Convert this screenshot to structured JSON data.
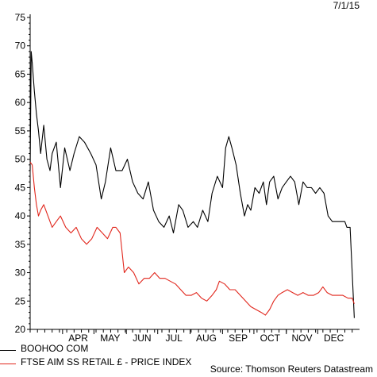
{
  "header": {
    "date": "7/1/15"
  },
  "footer": {
    "source": "Source: Thomson Reuters Datastream"
  },
  "chart_data": {
    "type": "line",
    "title": "",
    "xlabel": "",
    "ylabel": "",
    "ylim": [
      20,
      75
    ],
    "yticks": [
      20,
      25,
      30,
      35,
      40,
      45,
      50,
      55,
      60,
      65,
      70,
      75
    ],
    "xlim": [
      "2014-03-01",
      "2015-01-07"
    ],
    "month_labels": [
      "APR",
      "MAY",
      "JUN",
      "JUL",
      "AUG",
      "SEP",
      "OCT",
      "NOV",
      "DEC"
    ],
    "grid": false,
    "legend_position": "bottom-left",
    "series": [
      {
        "name": "BOOHOO COM",
        "color": "#000000",
        "points": [
          [
            "2014-03-01",
            48
          ],
          [
            "2014-03-02",
            69
          ],
          [
            "2014-03-03",
            67
          ],
          [
            "2014-03-05",
            62
          ],
          [
            "2014-03-07",
            58
          ],
          [
            "2014-03-09",
            55
          ],
          [
            "2014-03-11",
            51
          ],
          [
            "2014-03-14",
            56
          ],
          [
            "2014-03-17",
            50
          ],
          [
            "2014-03-20",
            48
          ],
          [
            "2014-03-22",
            51
          ],
          [
            "2014-03-26",
            53
          ],
          [
            "2014-03-30",
            45
          ],
          [
            "2014-04-03",
            52
          ],
          [
            "2014-04-08",
            48
          ],
          [
            "2014-04-12",
            51
          ],
          [
            "2014-04-17",
            54
          ],
          [
            "2014-04-22",
            53
          ],
          [
            "2014-04-28",
            51
          ],
          [
            "2014-05-03",
            49
          ],
          [
            "2014-05-08",
            43
          ],
          [
            "2014-05-12",
            46
          ],
          [
            "2014-05-17",
            52
          ],
          [
            "2014-05-22",
            48
          ],
          [
            "2014-05-28",
            48
          ],
          [
            "2014-06-02",
            50
          ],
          [
            "2014-06-07",
            46
          ],
          [
            "2014-06-12",
            44
          ],
          [
            "2014-06-17",
            43
          ],
          [
            "2014-06-22",
            46
          ],
          [
            "2014-06-27",
            41
          ],
          [
            "2014-07-02",
            39
          ],
          [
            "2014-07-07",
            38
          ],
          [
            "2014-07-12",
            40
          ],
          [
            "2014-07-16",
            37
          ],
          [
            "2014-07-21",
            42
          ],
          [
            "2014-07-25",
            41
          ],
          [
            "2014-07-30",
            38
          ],
          [
            "2014-08-04",
            39
          ],
          [
            "2014-08-08",
            38
          ],
          [
            "2014-08-13",
            41
          ],
          [
            "2014-08-18",
            39
          ],
          [
            "2014-08-22",
            44
          ],
          [
            "2014-08-27",
            47
          ],
          [
            "2014-09-01",
            45
          ],
          [
            "2014-09-04",
            52
          ],
          [
            "2014-09-07",
            54
          ],
          [
            "2014-09-10",
            52
          ],
          [
            "2014-09-14",
            49
          ],
          [
            "2014-09-18",
            44
          ],
          [
            "2014-09-22",
            40
          ],
          [
            "2014-09-25",
            42
          ],
          [
            "2014-09-28",
            41
          ],
          [
            "2014-10-02",
            45
          ],
          [
            "2014-10-06",
            44
          ],
          [
            "2014-10-10",
            46
          ],
          [
            "2014-10-13",
            42
          ],
          [
            "2014-10-16",
            46
          ],
          [
            "2014-10-20",
            47
          ],
          [
            "2014-10-24",
            43
          ],
          [
            "2014-10-28",
            45
          ],
          [
            "2014-11-01",
            46
          ],
          [
            "2014-11-05",
            47
          ],
          [
            "2014-11-09",
            46
          ],
          [
            "2014-11-13",
            42
          ],
          [
            "2014-11-17",
            46
          ],
          [
            "2014-11-21",
            45
          ],
          [
            "2014-11-25",
            45
          ],
          [
            "2014-11-29",
            44
          ],
          [
            "2014-12-03",
            45
          ],
          [
            "2014-12-07",
            44
          ],
          [
            "2014-12-11",
            40
          ],
          [
            "2014-12-15",
            39
          ],
          [
            "2014-12-19",
            39
          ],
          [
            "2014-12-23",
            39
          ],
          [
            "2014-12-27",
            39
          ],
          [
            "2014-12-29",
            38
          ],
          [
            "2015-01-01",
            38
          ],
          [
            "2015-01-05",
            22
          ]
        ]
      },
      {
        "name": "FTSE AIM SS RETAIL £ - PRICE INDEX",
        "color": "#e1261c",
        "points": [
          [
            "2014-03-01",
            49.5
          ],
          [
            "2014-03-03",
            49
          ],
          [
            "2014-03-05",
            45
          ],
          [
            "2014-03-07",
            42
          ],
          [
            "2014-03-09",
            40
          ],
          [
            "2014-03-11",
            41
          ],
          [
            "2014-03-14",
            42
          ],
          [
            "2014-03-18",
            40
          ],
          [
            "2014-03-22",
            38
          ],
          [
            "2014-03-26",
            39
          ],
          [
            "2014-03-30",
            40
          ],
          [
            "2014-04-04",
            38
          ],
          [
            "2014-04-09",
            37
          ],
          [
            "2014-04-14",
            38
          ],
          [
            "2014-04-19",
            36
          ],
          [
            "2014-04-24",
            35
          ],
          [
            "2014-04-29",
            36
          ],
          [
            "2014-05-04",
            38
          ],
          [
            "2014-05-09",
            37
          ],
          [
            "2014-05-14",
            36
          ],
          [
            "2014-05-19",
            38
          ],
          [
            "2014-05-22",
            38
          ],
          [
            "2014-05-26",
            37
          ],
          [
            "2014-05-30",
            30
          ],
          [
            "2014-06-03",
            31
          ],
          [
            "2014-06-08",
            30
          ],
          [
            "2014-06-13",
            28
          ],
          [
            "2014-06-18",
            29
          ],
          [
            "2014-06-23",
            29
          ],
          [
            "2014-06-28",
            30
          ],
          [
            "2014-07-03",
            29
          ],
          [
            "2014-07-08",
            29
          ],
          [
            "2014-07-13",
            28.5
          ],
          [
            "2014-07-18",
            28
          ],
          [
            "2014-07-23",
            27
          ],
          [
            "2014-07-28",
            26
          ],
          [
            "2014-08-02",
            26
          ],
          [
            "2014-08-07",
            26.5
          ],
          [
            "2014-08-12",
            25.5
          ],
          [
            "2014-08-17",
            25
          ],
          [
            "2014-08-22",
            26
          ],
          [
            "2014-08-26",
            27
          ],
          [
            "2014-08-29",
            28.5
          ],
          [
            "2014-09-03",
            28
          ],
          [
            "2014-09-08",
            27
          ],
          [
            "2014-09-13",
            27
          ],
          [
            "2014-09-18",
            26
          ],
          [
            "2014-09-23",
            25
          ],
          [
            "2014-09-28",
            24
          ],
          [
            "2014-10-03",
            23.5
          ],
          [
            "2014-10-08",
            23
          ],
          [
            "2014-10-12",
            22.5
          ],
          [
            "2014-10-16",
            23.5
          ],
          [
            "2014-10-20",
            25
          ],
          [
            "2014-10-24",
            26
          ],
          [
            "2014-10-28",
            26.5
          ],
          [
            "2014-11-02",
            27
          ],
          [
            "2014-11-07",
            26.5
          ],
          [
            "2014-11-12",
            26
          ],
          [
            "2014-11-17",
            26.5
          ],
          [
            "2014-11-22",
            26
          ],
          [
            "2014-11-27",
            26
          ],
          [
            "2014-12-02",
            26.5
          ],
          [
            "2014-12-06",
            27.5
          ],
          [
            "2014-12-10",
            26.5
          ],
          [
            "2014-12-15",
            26
          ],
          [
            "2014-12-20",
            26
          ],
          [
            "2014-12-25",
            26
          ],
          [
            "2014-12-30",
            25.5
          ],
          [
            "2015-01-03",
            25.5
          ],
          [
            "2015-01-05",
            24.5
          ]
        ]
      }
    ]
  }
}
